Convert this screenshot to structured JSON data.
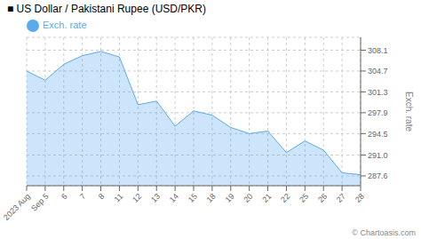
{
  "chart_data": {
    "type": "area",
    "title": "■ US Dollar / Pakistani Rupee (USD/PKR)",
    "y_label": "Exch. rate",
    "categories": [
      "2023 Aug",
      "Sep 5",
      "6",
      "7",
      "8",
      "11",
      "12",
      "13",
      "14",
      "15",
      "18",
      "19",
      "20",
      "21",
      "22",
      "25",
      "26",
      "27",
      "28"
    ],
    "series": [
      {
        "name": "Exch. rate",
        "color": "#5aaaee",
        "values": [
          304.7,
          303.2,
          305.8,
          307.2,
          307.9,
          307.0,
          299.2,
          299.8,
          295.7,
          298.2,
          297.5,
          295.5,
          294.5,
          294.9,
          291.4,
          293.3,
          291.8,
          288.1,
          287.8
        ]
      }
    ],
    "ylim": [
      286.0,
      310.2
    ],
    "yticks": [
      287.6,
      {
        "value": 291.0,
        "label": "291.0"
      },
      294.5,
      297.9,
      301.3,
      304.7,
      308.1
    ],
    "grid": true,
    "legend": "top-left",
    "annotations": [
      "© Chartoasis.com"
    ]
  }
}
